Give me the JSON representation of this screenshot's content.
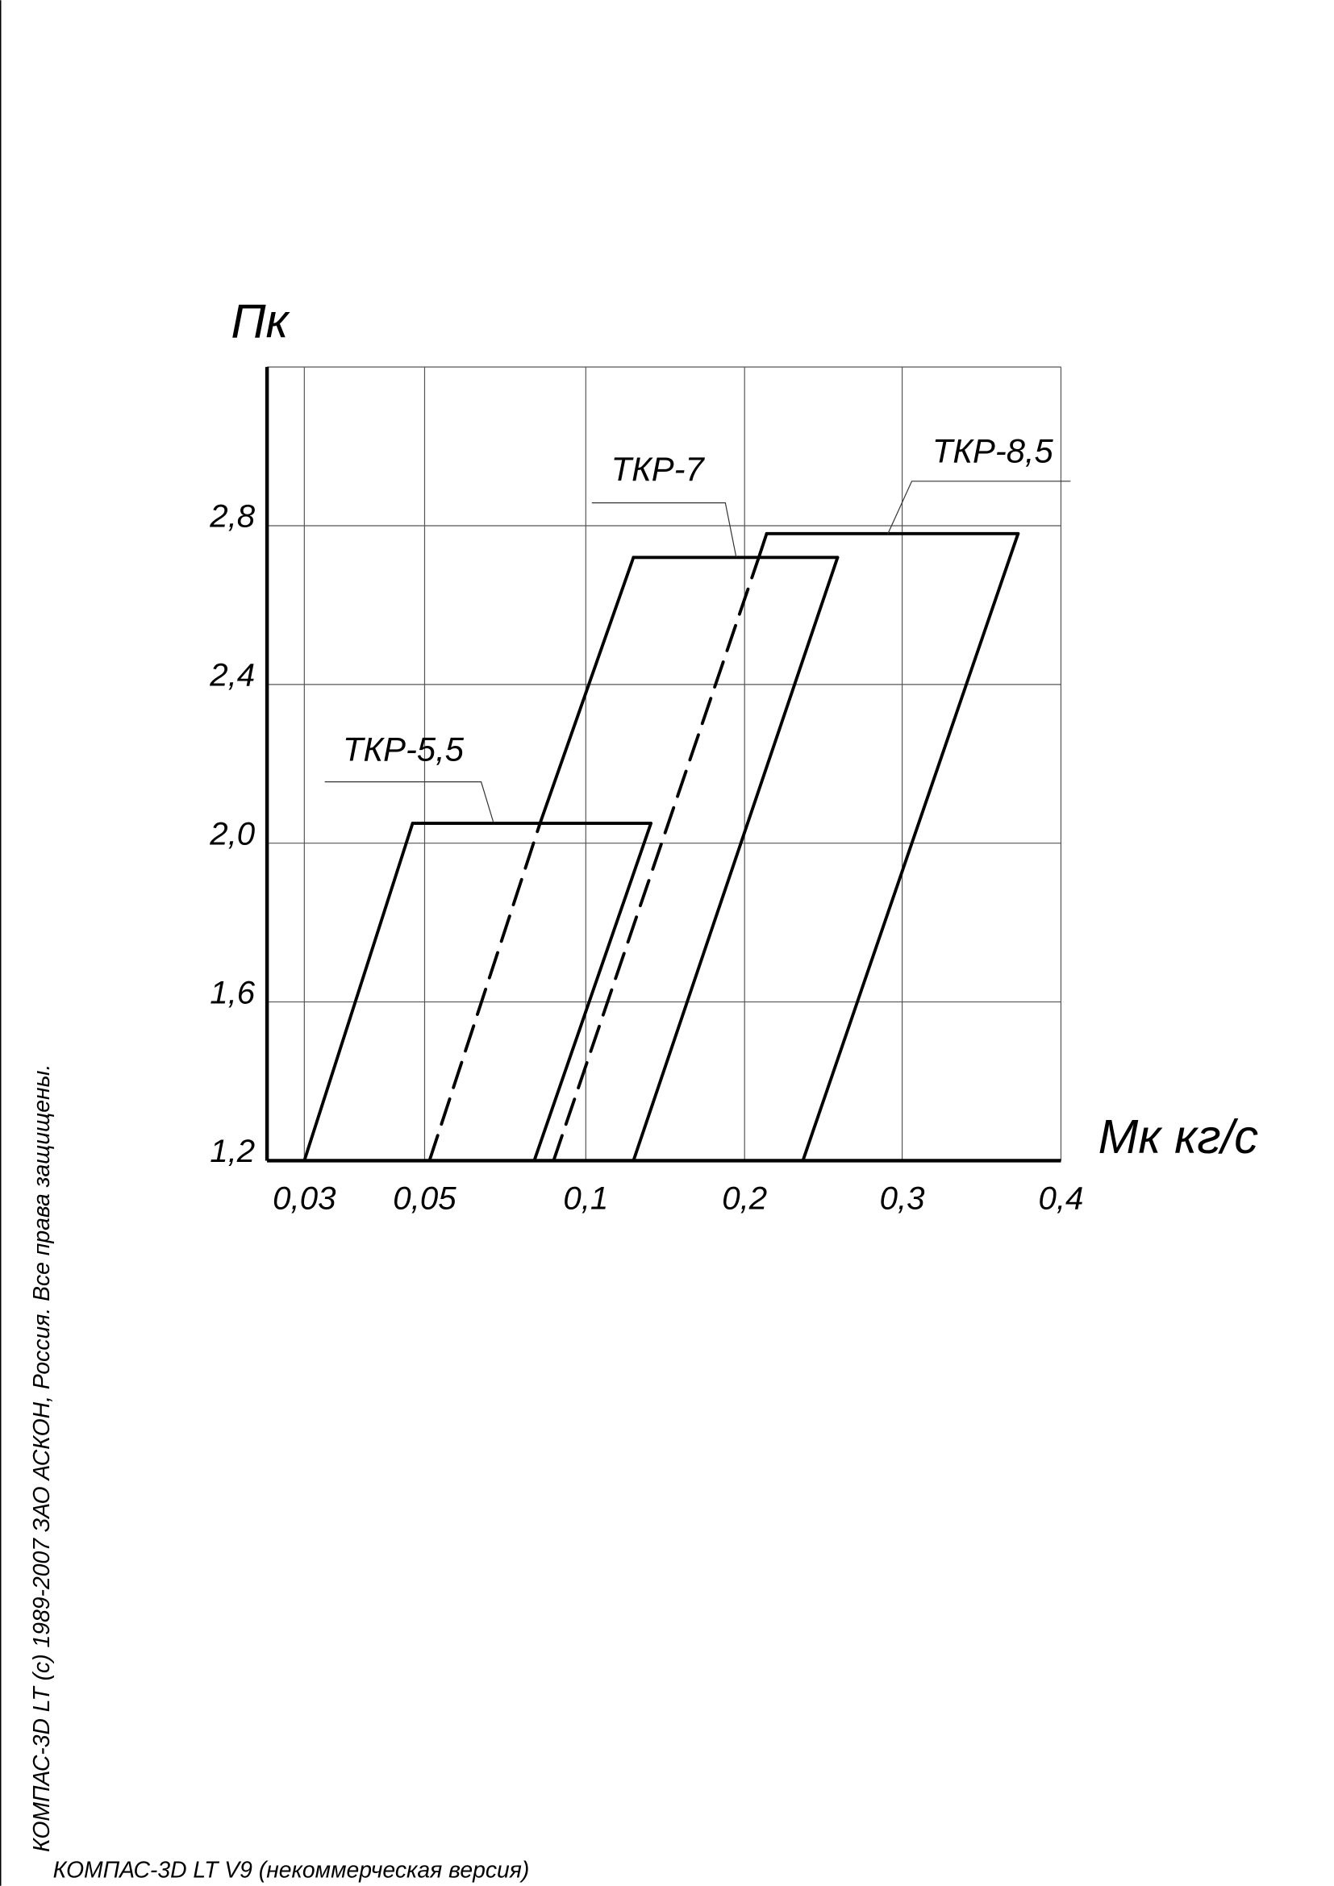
{
  "chart_data": {
    "type": "line",
    "y_label": "Пк",
    "x_label": "Mк кг/с",
    "xlim": [
      0.024,
      0.4
    ],
    "xticks": [
      {
        "value": 0.03,
        "label": "0,03"
      },
      {
        "value": 0.05,
        "label": "0,05"
      },
      {
        "value": 0.1,
        "label": "0,1"
      },
      {
        "value": 0.2,
        "label": "0,2"
      },
      {
        "value": 0.3,
        "label": "0,3"
      },
      {
        "value": 0.4,
        "label": "0,4"
      }
    ],
    "ylim": [
      1.2,
      3.2
    ],
    "yticks": [
      {
        "value": 1.2,
        "label": "1,2"
      },
      {
        "value": 1.6,
        "label": "1,6"
      },
      {
        "value": 2.0,
        "label": "2,0"
      },
      {
        "value": 2.4,
        "label": "2,4"
      },
      {
        "value": 2.8,
        "label": "2,8"
      }
    ],
    "grid": true,
    "color": "#000000",
    "series": [
      {
        "name": "ТКР-5,5",
        "x": [
          0.03,
          0.048,
          0.141,
          0.084
        ],
        "values": [
          1.2,
          2.05,
          2.05,
          1.2
        ],
        "dashed": [
          false,
          false,
          false
        ]
      },
      {
        "name": "ТКР-7",
        "x": [
          0.0515,
          0.0858,
          0.13,
          0.259,
          0.13
        ],
        "values": [
          1.2,
          2.05,
          2.72,
          2.72,
          1.2
        ],
        "dashed": [
          true,
          false,
          false,
          false
        ]
      },
      {
        "name": "ТКР-8,5",
        "x": [
          0.09,
          0.209,
          0.214,
          0.373,
          0.237
        ],
        "values": [
          1.2,
          2.72,
          2.78,
          2.78,
          1.2
        ],
        "dashed": [
          true,
          false,
          false,
          false
        ]
      }
    ]
  },
  "watermark_side": "КОМПАС-3D LT (c) 1989-2007 ЗАО АСКОН, Россия. Все права защищены.",
  "watermark_bottom": "КОМПАС-3D LT V9 (некоммерческая версия)"
}
